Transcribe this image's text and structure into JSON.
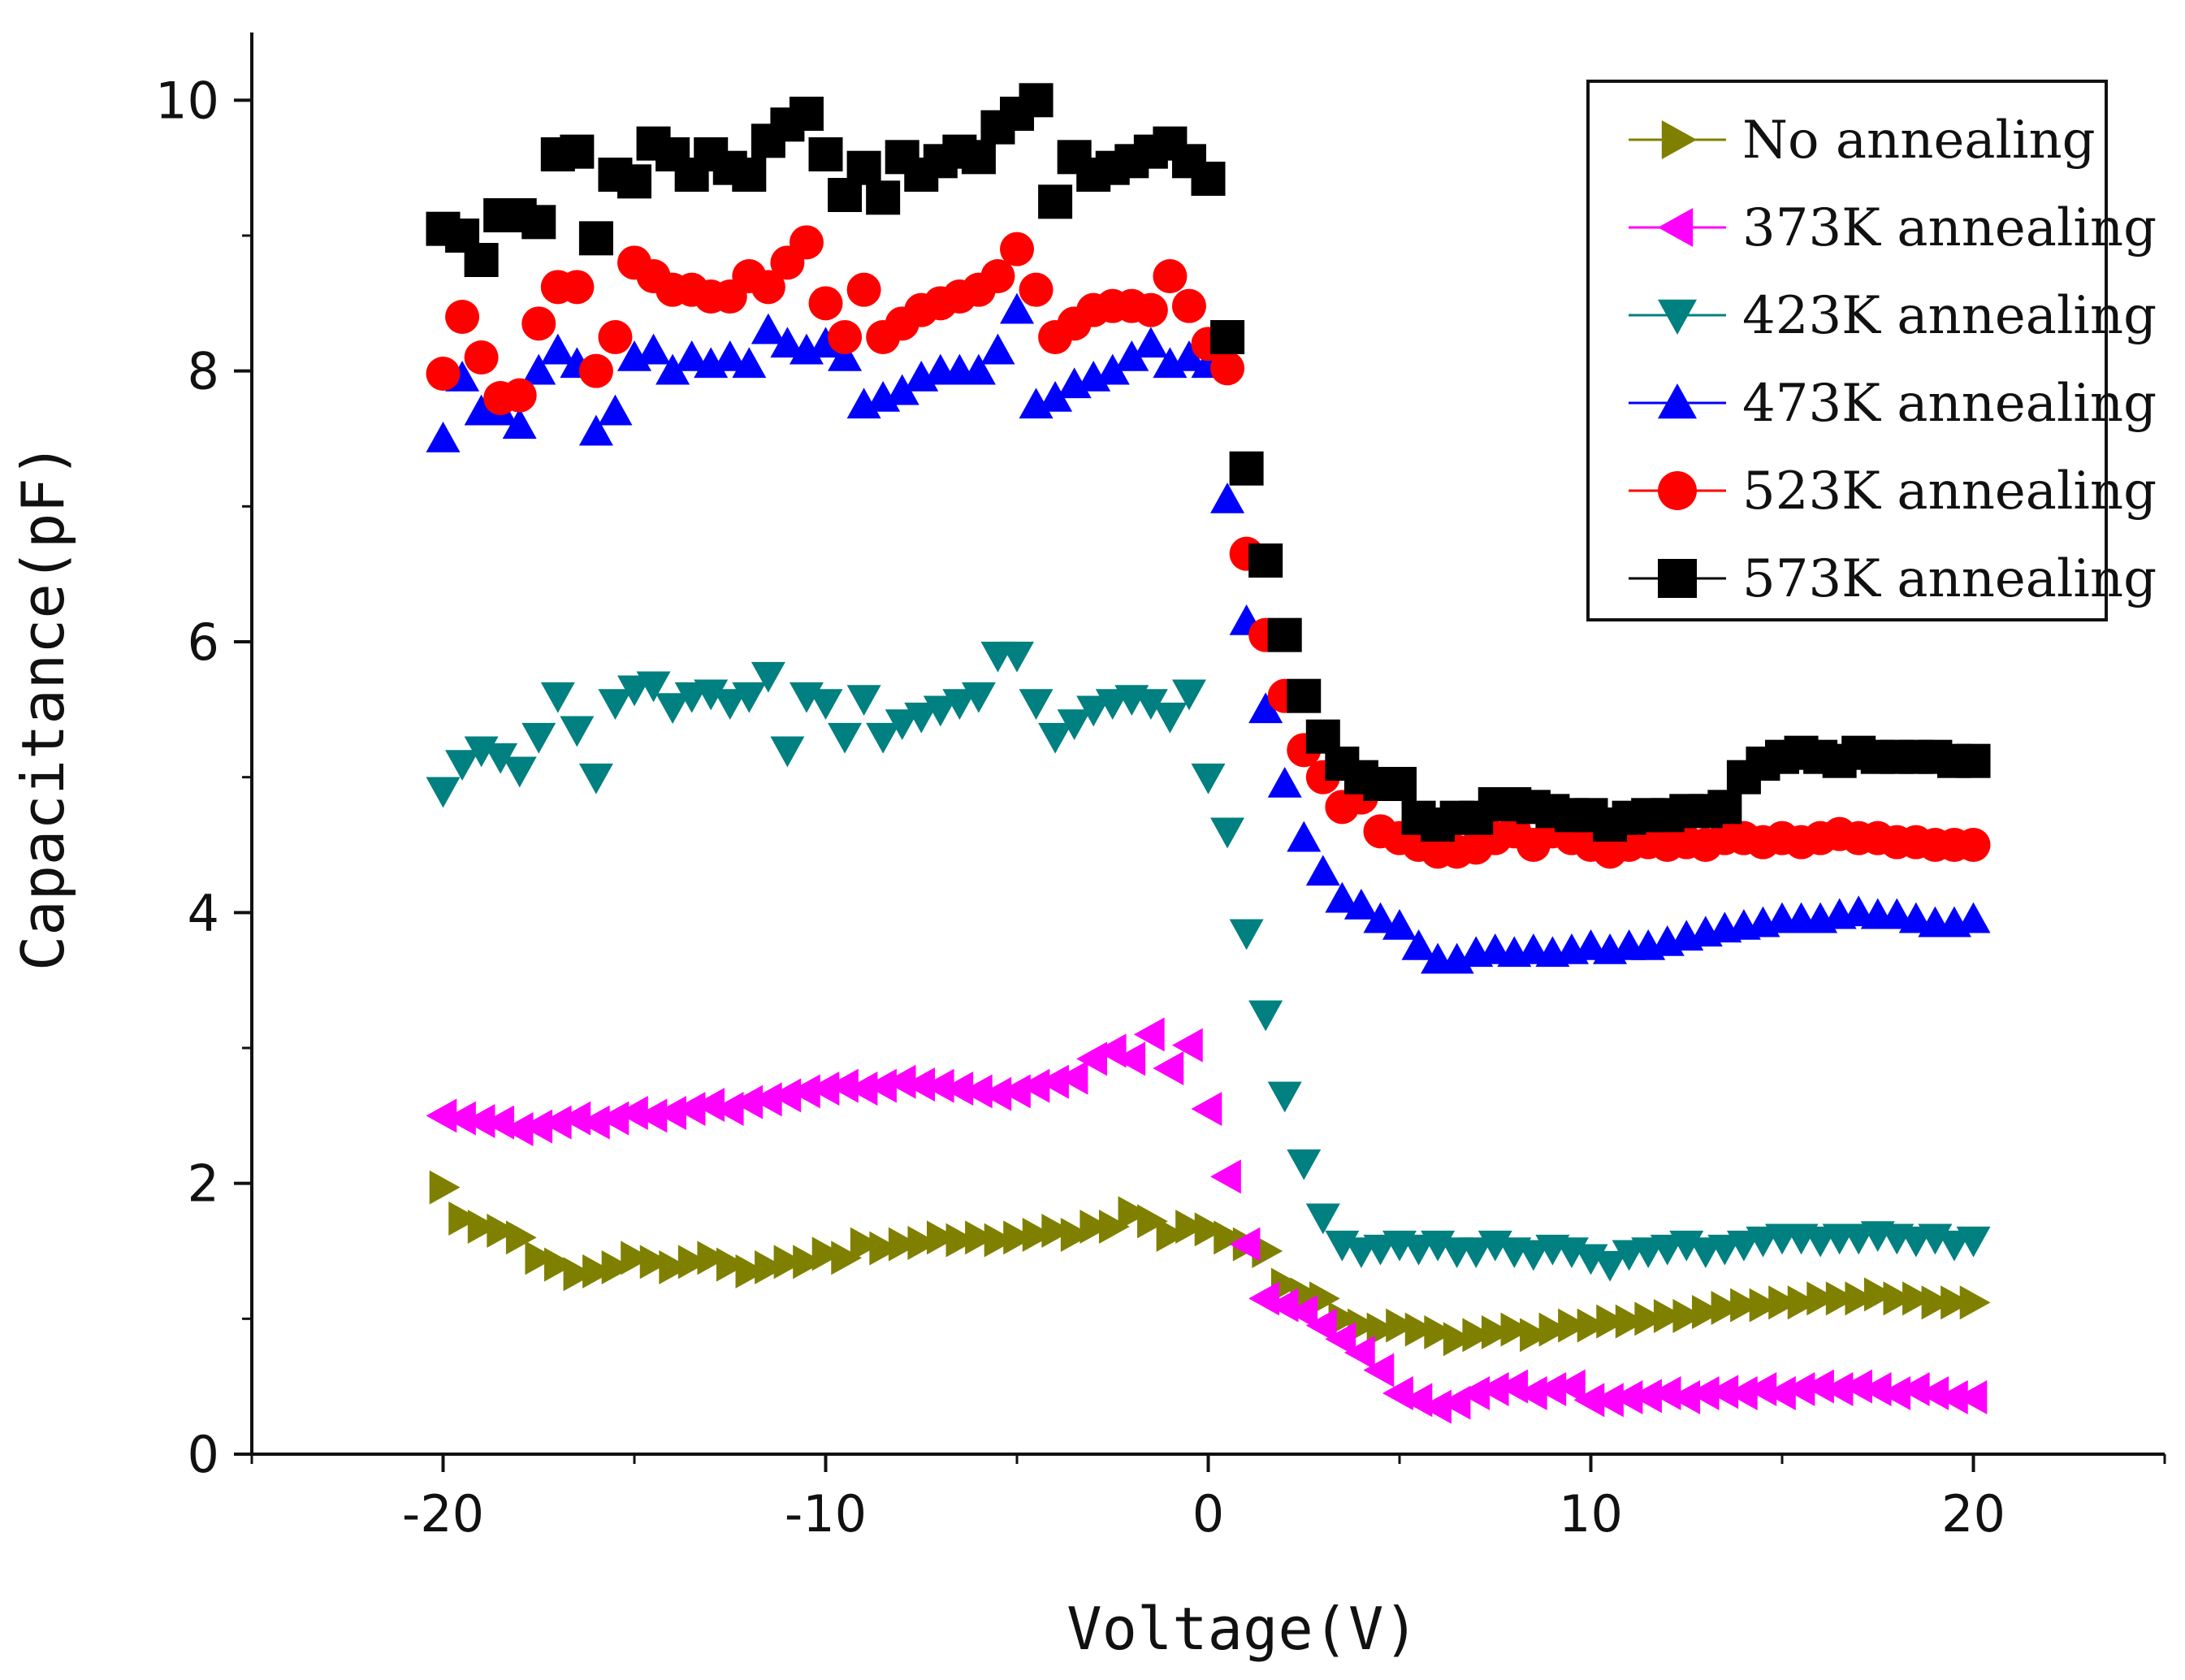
{
  "chart_data": {
    "type": "scatter",
    "title": "",
    "xlabel": "Voltage(V)",
    "ylabel": "Capacitance(pF)",
    "xlim": [
      -25,
      25
    ],
    "ylim": [
      0,
      10.5
    ],
    "xticks": [
      -20,
      -10,
      0,
      10,
      20
    ],
    "xtick_labels": [
      "-20",
      "-10",
      "0",
      "10",
      "20"
    ],
    "yticks": [
      0,
      2,
      4,
      6,
      8,
      10
    ],
    "ytick_labels": [
      "0",
      "2",
      "4",
      "6",
      "8",
      "10"
    ],
    "legend_position": "top-right",
    "series": [
      {
        "name": "No annealing",
        "color": "#808000",
        "marker": "triangle-right",
        "x": [
          -20,
          -19.5,
          -19,
          -18.5,
          -18,
          -17.5,
          -17,
          -16.5,
          -16,
          -15.5,
          -15,
          -14.5,
          -14,
          -13.5,
          -13,
          -12.5,
          -12,
          -11.5,
          -11,
          -10.5,
          -10,
          -9.5,
          -9,
          -8.5,
          -8,
          -7.5,
          -7,
          -6.5,
          -6,
          -5.5,
          -5,
          -4.5,
          -4,
          -3.5,
          -3,
          -2.5,
          -2,
          -1.5,
          -1,
          -0.5,
          0,
          0.5,
          1,
          1.5,
          2,
          2.5,
          3,
          3.5,
          4,
          4.5,
          5,
          5.5,
          6,
          6.5,
          7,
          7.5,
          8,
          8.5,
          9,
          9.5,
          10,
          10.5,
          11,
          11.5,
          12,
          12.5,
          13,
          13.5,
          14,
          14.5,
          15,
          15.5,
          16,
          16.5,
          17,
          17.5,
          18,
          18.5,
          19,
          19.5,
          20
        ],
        "y": [
          1.97,
          1.74,
          1.68,
          1.65,
          1.6,
          1.45,
          1.4,
          1.33,
          1.35,
          1.38,
          1.45,
          1.42,
          1.38,
          1.42,
          1.45,
          1.4,
          1.35,
          1.38,
          1.42,
          1.42,
          1.48,
          1.45,
          1.55,
          1.52,
          1.55,
          1.56,
          1.6,
          1.58,
          1.6,
          1.58,
          1.6,
          1.62,
          1.65,
          1.62,
          1.68,
          1.68,
          1.78,
          1.72,
          1.62,
          1.68,
          1.66,
          1.6,
          1.55,
          1.5,
          1.25,
          1.18,
          1.15,
          1.0,
          0.95,
          0.92,
          0.95,
          0.92,
          0.9,
          0.85,
          0.88,
          0.9,
          0.92,
          0.88,
          0.92,
          0.95,
          0.95,
          0.98,
          0.98,
          1.0,
          1.02,
          1.02,
          1.05,
          1.08,
          1.1,
          1.1,
          1.12,
          1.12,
          1.15,
          1.15,
          1.15,
          1.18,
          1.15,
          1.15,
          1.12,
          1.12,
          1.12
        ]
      },
      {
        "name": "373K annealing",
        "color": "#ff00ff",
        "marker": "triangle-left",
        "x": [
          -20,
          -19.5,
          -19,
          -18.5,
          -18,
          -17.5,
          -17,
          -16.5,
          -16,
          -15.5,
          -15,
          -14.5,
          -14,
          -13.5,
          -13,
          -12.5,
          -12,
          -11.5,
          -11,
          -10.5,
          -10,
          -9.5,
          -9,
          -8.5,
          -8,
          -7.5,
          -7,
          -6.5,
          -6,
          -5.5,
          -5,
          -4.5,
          -4,
          -3.5,
          -3,
          -2.5,
          -2,
          -1.5,
          -1,
          -0.5,
          0,
          0.5,
          1,
          1.5,
          2,
          2.5,
          3,
          3.5,
          4,
          4.5,
          5,
          5.5,
          6,
          6.5,
          7,
          7.5,
          8,
          8.5,
          9,
          9.5,
          10,
          10.5,
          11,
          11.5,
          12,
          12.5,
          13,
          13.5,
          14,
          14.5,
          15,
          15.5,
          16,
          16.5,
          17,
          17.5,
          18,
          18.5,
          19,
          19.5,
          20
        ],
        "y": [
          2.5,
          2.48,
          2.46,
          2.45,
          2.4,
          2.42,
          2.45,
          2.48,
          2.45,
          2.48,
          2.52,
          2.5,
          2.52,
          2.55,
          2.58,
          2.55,
          2.6,
          2.62,
          2.65,
          2.68,
          2.7,
          2.72,
          2.7,
          2.72,
          2.75,
          2.73,
          2.72,
          2.7,
          2.68,
          2.66,
          2.68,
          2.72,
          2.75,
          2.78,
          2.92,
          2.98,
          2.92,
          3.1,
          2.85,
          3.02,
          2.55,
          2.05,
          1.55,
          1.15,
          1.1,
          1.05,
          0.95,
          0.85,
          0.75,
          0.62,
          0.45,
          0.4,
          0.35,
          0.38,
          0.45,
          0.48,
          0.5,
          0.45,
          0.48,
          0.5,
          0.4,
          0.4,
          0.42,
          0.43,
          0.45,
          0.42,
          0.45,
          0.46,
          0.45,
          0.48,
          0.45,
          0.48,
          0.5,
          0.48,
          0.5,
          0.48,
          0.45,
          0.48,
          0.45,
          0.42,
          0.42
        ]
      },
      {
        "name": "423K annealing",
        "color": "#008080",
        "marker": "triangle-down",
        "x": [
          -20,
          -19.5,
          -19,
          -18.5,
          -18,
          -17.5,
          -17,
          -16.5,
          -16,
          -15.5,
          -15,
          -14.5,
          -14,
          -13.5,
          -13,
          -12.5,
          -12,
          -11.5,
          -11,
          -10.5,
          -10,
          -9.5,
          -9,
          -8.5,
          -8,
          -7.5,
          -7,
          -6.5,
          -6,
          -5.5,
          -5,
          -4.5,
          -4,
          -3.5,
          -3,
          -2.5,
          -2,
          -1.5,
          -1,
          -0.5,
          0,
          0.5,
          1,
          1.5,
          2,
          2.5,
          3,
          3.5,
          4,
          4.5,
          5,
          5.5,
          6,
          6.5,
          7,
          7.5,
          8,
          8.5,
          9,
          9.5,
          10,
          10.5,
          11,
          11.5,
          12,
          12.5,
          13,
          13.5,
          14,
          14.5,
          15,
          15.5,
          16,
          16.5,
          17,
          17.5,
          18,
          18.5,
          19,
          19.5,
          20
        ],
        "y": [
          4.9,
          5.1,
          5.2,
          5.15,
          5.05,
          5.3,
          5.6,
          5.35,
          5.0,
          5.55,
          5.65,
          5.68,
          5.52,
          5.6,
          5.62,
          5.55,
          5.6,
          5.75,
          5.2,
          5.6,
          5.55,
          5.3,
          5.58,
          5.3,
          5.4,
          5.45,
          5.5,
          5.55,
          5.6,
          5.9,
          5.9,
          5.55,
          5.3,
          5.4,
          5.5,
          5.55,
          5.58,
          5.55,
          5.45,
          5.62,
          5.0,
          4.6,
          3.85,
          3.25,
          2.65,
          2.15,
          1.75,
          1.55,
          1.5,
          1.52,
          1.55,
          1.52,
          1.55,
          1.5,
          1.5,
          1.55,
          1.5,
          1.48,
          1.52,
          1.5,
          1.45,
          1.4,
          1.48,
          1.5,
          1.52,
          1.55,
          1.5,
          1.52,
          1.55,
          1.58,
          1.6,
          1.6,
          1.58,
          1.6,
          1.6,
          1.62,
          1.6,
          1.58,
          1.6,
          1.55,
          1.58
        ]
      },
      {
        "name": "473K annealing",
        "color": "#0000ff",
        "marker": "triangle-up",
        "x": [
          -20,
          -19.5,
          -19,
          -18.5,
          -18,
          -17.5,
          -17,
          -16.5,
          -16,
          -15.5,
          -15,
          -14.5,
          -14,
          -13.5,
          -13,
          -12.5,
          -12,
          -11.5,
          -11,
          -10.5,
          -10,
          -9.5,
          -9,
          -8.5,
          -8,
          -7.5,
          -7,
          -6.5,
          -6,
          -5.5,
          -5,
          -4.5,
          -4,
          -3.5,
          -3,
          -2.5,
          -2,
          -1.5,
          -1,
          -0.5,
          0,
          0.5,
          1,
          1.5,
          2,
          2.5,
          3,
          3.5,
          4,
          4.5,
          5,
          5.5,
          6,
          6.5,
          7,
          7.5,
          8,
          8.5,
          9,
          9.5,
          10,
          10.5,
          11,
          11.5,
          12,
          12.5,
          13,
          13.5,
          14,
          14.5,
          15,
          15.5,
          16,
          16.5,
          17,
          17.5,
          18,
          18.5,
          19,
          19.5,
          20
        ],
        "y": [
          7.5,
          7.95,
          7.7,
          7.7,
          7.6,
          8.0,
          8.15,
          8.05,
          7.55,
          7.7,
          8.1,
          8.15,
          8.0,
          8.1,
          8.05,
          8.1,
          8.05,
          8.3,
          8.2,
          8.15,
          8.2,
          8.1,
          7.75,
          7.8,
          7.85,
          7.95,
          8.0,
          8.0,
          8.0,
          8.15,
          8.45,
          7.75,
          7.8,
          7.9,
          7.95,
          8.0,
          8.1,
          8.2,
          8.05,
          8.1,
          8.05,
          7.05,
          6.15,
          5.5,
          4.95,
          4.55,
          4.3,
          4.1,
          4.05,
          3.95,
          3.9,
          3.75,
          3.65,
          3.65,
          3.7,
          3.72,
          3.7,
          3.72,
          3.7,
          3.72,
          3.75,
          3.72,
          3.75,
          3.75,
          3.78,
          3.82,
          3.85,
          3.88,
          3.9,
          3.92,
          3.95,
          3.95,
          3.95,
          3.98,
          4.0,
          3.98,
          3.98,
          3.95,
          3.92,
          3.92,
          3.95
        ]
      },
      {
        "name": "523K annealing",
        "color": "#ff0000",
        "marker": "circle",
        "x": [
          -20,
          -19.5,
          -19,
          -18.5,
          -18,
          -17.5,
          -17,
          -16.5,
          -16,
          -15.5,
          -15,
          -14.5,
          -14,
          -13.5,
          -13,
          -12.5,
          -12,
          -11.5,
          -11,
          -10.5,
          -10,
          -9.5,
          -9,
          -8.5,
          -8,
          -7.5,
          -7,
          -6.5,
          -6,
          -5.5,
          -5,
          -4.5,
          -4,
          -3.5,
          -3,
          -2.5,
          -2,
          -1.5,
          -1,
          -0.5,
          0,
          0.5,
          1,
          1.5,
          2,
          2.5,
          3,
          3.5,
          4,
          4.5,
          5,
          5.5,
          6,
          6.5,
          7,
          7.5,
          8,
          8.5,
          9,
          9.5,
          10,
          10.5,
          11,
          11.5,
          12,
          12.5,
          13,
          13.5,
          14,
          14.5,
          15,
          15.5,
          16,
          16.5,
          17,
          17.5,
          18,
          18.5,
          19,
          19.5,
          20
        ],
        "y": [
          7.98,
          8.4,
          8.1,
          7.8,
          7.82,
          8.35,
          8.62,
          8.62,
          8.0,
          8.25,
          8.8,
          8.7,
          8.6,
          8.6,
          8.55,
          8.55,
          8.7,
          8.62,
          8.8,
          8.95,
          8.5,
          8.25,
          8.6,
          8.25,
          8.35,
          8.45,
          8.5,
          8.55,
          8.6,
          8.7,
          8.9,
          8.6,
          8.25,
          8.35,
          8.45,
          8.48,
          8.48,
          8.45,
          8.7,
          8.48,
          8.2,
          8.02,
          6.65,
          6.05,
          5.6,
          5.2,
          5.0,
          4.78,
          4.85,
          4.6,
          4.55,
          4.5,
          4.45,
          4.45,
          4.48,
          4.55,
          4.6,
          4.5,
          4.6,
          4.55,
          4.5,
          4.45,
          4.5,
          4.52,
          4.5,
          4.52,
          4.5,
          4.55,
          4.55,
          4.52,
          4.55,
          4.52,
          4.55,
          4.58,
          4.55,
          4.55,
          4.52,
          4.52,
          4.5,
          4.5,
          4.5
        ]
      },
      {
        "name": "573K annealing",
        "color": "#000000",
        "marker": "square",
        "x": [
          -20,
          -19.5,
          -19,
          -18.5,
          -18,
          -17.5,
          -17,
          -16.5,
          -16,
          -15.5,
          -15,
          -14.5,
          -14,
          -13.5,
          -13,
          -12.5,
          -12,
          -11.5,
          -11,
          -10.5,
          -10,
          -9.5,
          -9,
          -8.5,
          -8,
          -7.5,
          -7,
          -6.5,
          -6,
          -5.5,
          -5,
          -4.5,
          -4,
          -3.5,
          -3,
          -2.5,
          -2,
          -1.5,
          -1,
          -0.5,
          0,
          0.5,
          1,
          1.5,
          2,
          2.5,
          3,
          3.5,
          4,
          4.5,
          5,
          5.5,
          6,
          6.5,
          7,
          7.5,
          8,
          8.5,
          9,
          9.5,
          10,
          10.5,
          11,
          11.5,
          12,
          12.5,
          13,
          13.5,
          14,
          14.5,
          15,
          15.5,
          16,
          16.5,
          17,
          17.5,
          18,
          18.5,
          19,
          19.5,
          20
        ],
        "y": [
          9.05,
          9.0,
          8.82,
          9.15,
          9.15,
          9.1,
          9.6,
          9.62,
          8.98,
          9.45,
          9.4,
          9.68,
          9.6,
          9.45,
          9.6,
          9.5,
          9.45,
          9.7,
          9.82,
          9.9,
          9.6,
          9.3,
          9.5,
          9.28,
          9.58,
          9.45,
          9.55,
          9.62,
          9.58,
          9.8,
          9.9,
          10.0,
          9.25,
          9.58,
          9.45,
          9.5,
          9.55,
          9.62,
          9.68,
          9.55,
          9.42,
          8.25,
          7.28,
          6.6,
          6.05,
          5.6,
          5.3,
          5.1,
          5.0,
          4.95,
          4.95,
          4.7,
          4.65,
          4.7,
          4.7,
          4.8,
          4.8,
          4.78,
          4.75,
          4.72,
          4.72,
          4.65,
          4.7,
          4.72,
          4.72,
          4.75,
          4.75,
          4.78,
          5.0,
          5.1,
          5.15,
          5.18,
          5.15,
          5.12,
          5.18,
          5.15,
          5.15,
          5.15,
          5.15,
          5.12,
          5.12
        ]
      }
    ]
  }
}
